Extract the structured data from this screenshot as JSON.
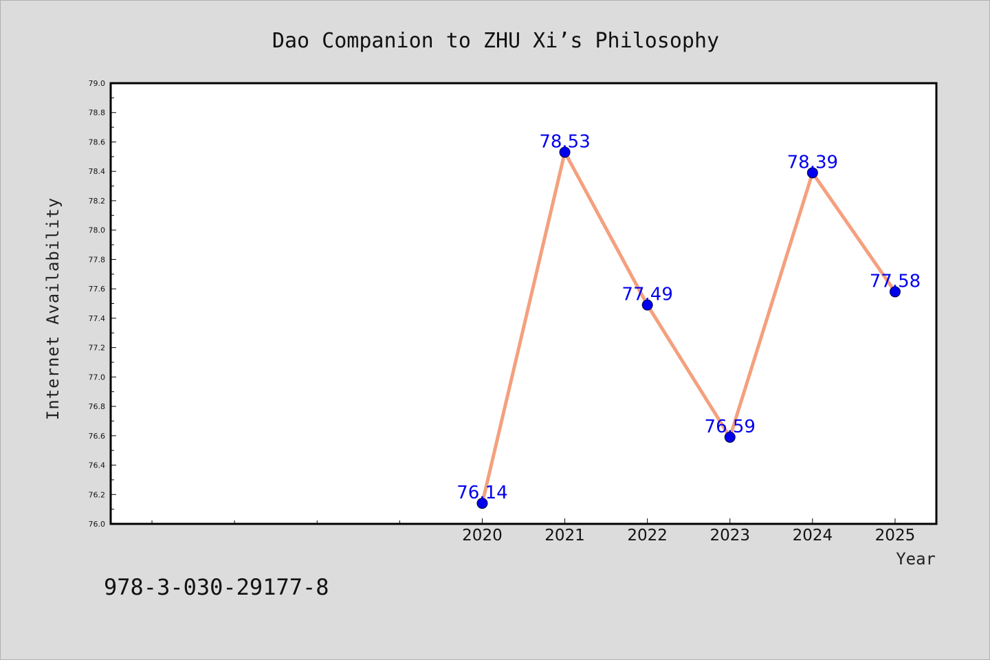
{
  "chart_data": {
    "type": "line",
    "title": "Dao Companion to ZHU Xi’s Philosophy",
    "xlabel": "Year",
    "ylabel": "Internet Availability",
    "x": [
      2020,
      2021,
      2022,
      2023,
      2024,
      2025
    ],
    "series": [
      {
        "values": [
          76.14,
          78.53,
          77.49,
          76.59,
          78.39,
          77.58
        ],
        "line_color": "#f4a07e",
        "marker_color": "#0000ee"
      }
    ],
    "data_labels": [
      "76.14",
      "78.53",
      "77.49",
      "76.59",
      "78.39",
      "77.58"
    ],
    "data_label_color": "#0000ee",
    "x_tick_labels": [
      "2020",
      "2021",
      "2022",
      "2023",
      "2024",
      "2025"
    ],
    "y_tick_labels": [
      "76.0",
      "76.2",
      "76.4",
      "76.6",
      "76.8",
      "77.0",
      "77.2",
      "77.4",
      "77.6",
      "77.8",
      "78.0",
      "78.2",
      "78.4",
      "78.6",
      "78.8",
      "79.0"
    ],
    "xlim": [
      2015.5,
      2025.5
    ],
    "ylim": [
      76.0,
      79.0
    ],
    "grid": false,
    "legend": "none"
  },
  "footer": {
    "isbn": "978-3-030-29177-8"
  }
}
